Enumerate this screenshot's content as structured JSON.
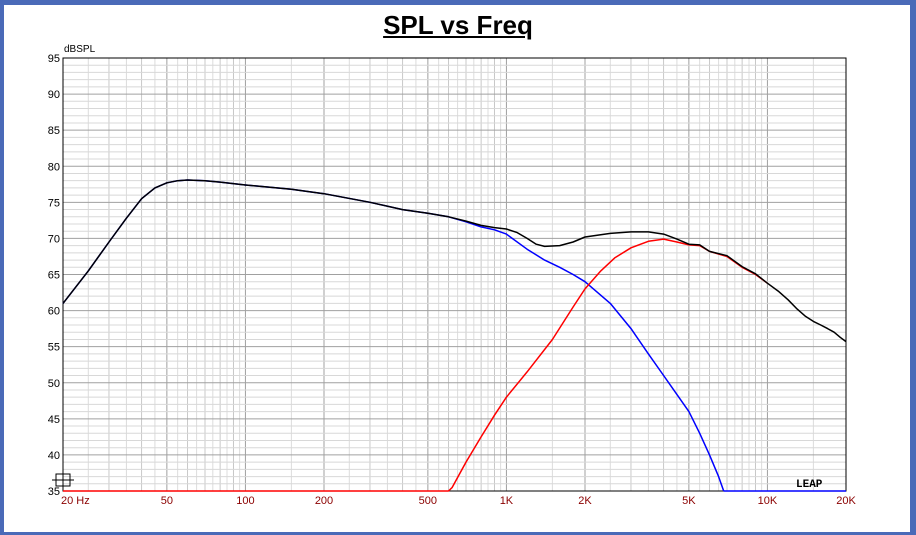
{
  "window": {
    "border_color": "#4a6ab8"
  },
  "chart_data": {
    "type": "line",
    "title": "SPL vs Freq",
    "ylabel": "dBSPL",
    "xlabel": "",
    "x_scale": "log",
    "xlim": [
      20,
      20000
    ],
    "ylim": [
      35,
      95
    ],
    "grid": true,
    "x_ticks": [
      {
        "value": 20,
        "label": "20 Hz"
      },
      {
        "value": 50,
        "label": "50"
      },
      {
        "value": 100,
        "label": "100"
      },
      {
        "value": 200,
        "label": "200"
      },
      {
        "value": 500,
        "label": "500"
      },
      {
        "value": 1000,
        "label": "1K"
      },
      {
        "value": 2000,
        "label": "2K"
      },
      {
        "value": 5000,
        "label": "5K"
      },
      {
        "value": 10000,
        "label": "10K"
      },
      {
        "value": 20000,
        "label": "20K"
      }
    ],
    "y_ticks": [
      35,
      40,
      45,
      50,
      55,
      60,
      65,
      70,
      75,
      80,
      85,
      90,
      95
    ],
    "logo_text": "LEAP",
    "series": [
      {
        "color": "#0000ff",
        "points": [
          [
            20,
            61
          ],
          [
            25,
            65.5
          ],
          [
            30,
            69.5
          ],
          [
            35,
            72.8
          ],
          [
            40,
            75.5
          ],
          [
            45,
            77
          ],
          [
            50,
            77.7
          ],
          [
            55,
            78
          ],
          [
            60,
            78.1
          ],
          [
            70,
            78
          ],
          [
            80,
            77.8
          ],
          [
            100,
            77.4
          ],
          [
            150,
            76.8
          ],
          [
            200,
            76.2
          ],
          [
            300,
            75
          ],
          [
            400,
            74
          ],
          [
            500,
            73.5
          ],
          [
            600,
            73
          ],
          [
            700,
            72.3
          ],
          [
            800,
            71.6
          ],
          [
            900,
            71.2
          ],
          [
            1000,
            70.6
          ],
          [
            1200,
            68.5
          ],
          [
            1400,
            67
          ],
          [
            1600,
            66
          ],
          [
            1800,
            65
          ],
          [
            2000,
            64
          ],
          [
            2500,
            61
          ],
          [
            3000,
            57.5
          ],
          [
            3500,
            54
          ],
          [
            4000,
            51
          ],
          [
            5000,
            46
          ],
          [
            5500,
            43
          ],
          [
            6000,
            40
          ],
          [
            6500,
            37
          ],
          [
            6800,
            35
          ]
        ]
      },
      {
        "color": "#ff0000",
        "points": [
          [
            20,
            35
          ],
          [
            600,
            35
          ],
          [
            620,
            35.5
          ],
          [
            700,
            39
          ],
          [
            800,
            42.5
          ],
          [
            900,
            45.5
          ],
          [
            1000,
            48
          ],
          [
            1200,
            51.5
          ],
          [
            1500,
            56
          ],
          [
            1800,
            60.5
          ],
          [
            2000,
            63
          ],
          [
            2300,
            65.5
          ],
          [
            2600,
            67.3
          ],
          [
            3000,
            68.7
          ],
          [
            3500,
            69.6
          ],
          [
            4000,
            69.9
          ],
          [
            4500,
            69.5
          ],
          [
            5000,
            69.1
          ],
          [
            5500,
            69
          ],
          [
            6000,
            68.2
          ],
          [
            7000,
            67.5
          ],
          [
            8000,
            66
          ],
          [
            9000,
            65
          ],
          [
            10000,
            63.8
          ]
        ]
      },
      {
        "color": "#000000",
        "points": [
          [
            20,
            61
          ],
          [
            25,
            65.5
          ],
          [
            30,
            69.5
          ],
          [
            35,
            72.8
          ],
          [
            40,
            75.5
          ],
          [
            45,
            77
          ],
          [
            50,
            77.7
          ],
          [
            55,
            78
          ],
          [
            60,
            78.1
          ],
          [
            70,
            78
          ],
          [
            80,
            77.8
          ],
          [
            100,
            77.4
          ],
          [
            150,
            76.8
          ],
          [
            200,
            76.2
          ],
          [
            300,
            75
          ],
          [
            400,
            74
          ],
          [
            500,
            73.5
          ],
          [
            600,
            73
          ],
          [
            700,
            72.4
          ],
          [
            800,
            71.8
          ],
          [
            900,
            71.5
          ],
          [
            1000,
            71.3
          ],
          [
            1100,
            70.8
          ],
          [
            1200,
            70
          ],
          [
            1300,
            69.2
          ],
          [
            1400,
            68.9
          ],
          [
            1600,
            69
          ],
          [
            1800,
            69.5
          ],
          [
            2000,
            70.2
          ],
          [
            2500,
            70.7
          ],
          [
            3000,
            70.9
          ],
          [
            3500,
            70.9
          ],
          [
            4000,
            70.6
          ],
          [
            4500,
            69.9
          ],
          [
            5000,
            69.2
          ],
          [
            5500,
            69.1
          ],
          [
            6000,
            68.2
          ],
          [
            7000,
            67.6
          ],
          [
            8000,
            66.1
          ],
          [
            9000,
            65.1
          ],
          [
            10000,
            63.8
          ],
          [
            11000,
            62.7
          ],
          [
            12000,
            61.5
          ],
          [
            13000,
            60.2
          ],
          [
            14000,
            59.2
          ],
          [
            15000,
            58.5
          ],
          [
            16000,
            58
          ],
          [
            17000,
            57.5
          ],
          [
            18000,
            57
          ],
          [
            19000,
            56.3
          ],
          [
            20000,
            55.7
          ]
        ]
      }
    ]
  }
}
